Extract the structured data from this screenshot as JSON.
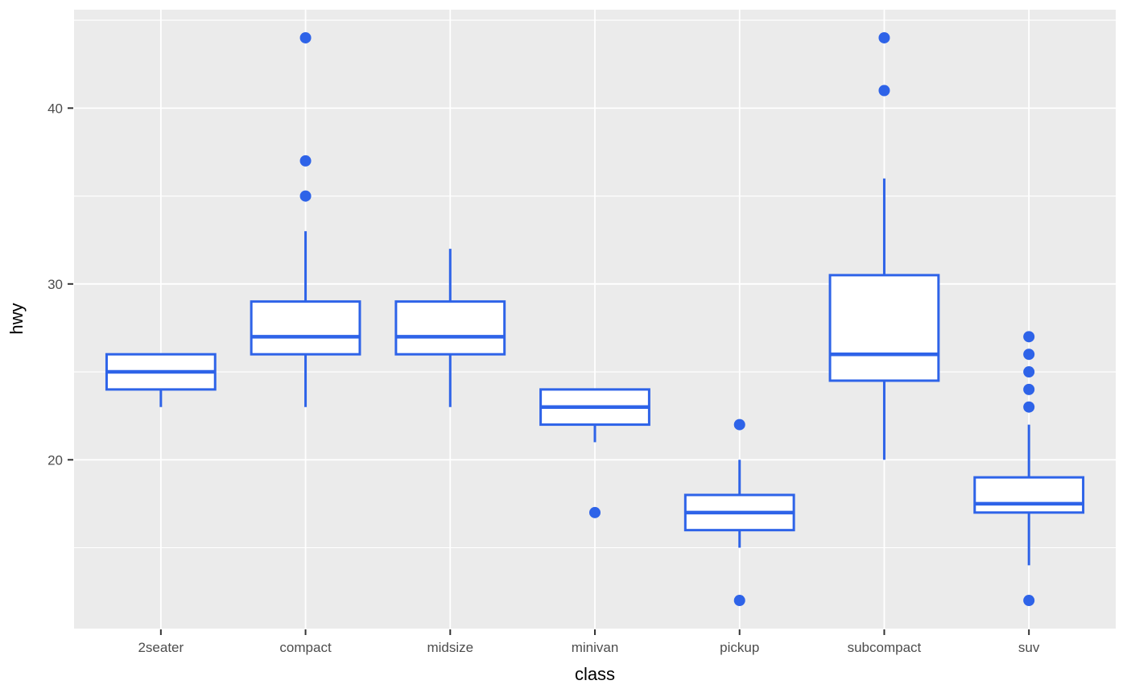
{
  "figure": {
    "background": "#FFFFFF"
  },
  "chart_data": {
    "type": "boxplot",
    "title": "",
    "xlabel": "class",
    "ylabel": "hwy",
    "categories": [
      "2seater",
      "compact",
      "midsize",
      "minivan",
      "pickup",
      "subcompact",
      "suv"
    ],
    "series": [
      {
        "category": "2seater",
        "whisker_low": 23,
        "q1": 24,
        "median": 25,
        "q3": 26,
        "whisker_high": 26,
        "outliers": []
      },
      {
        "category": "compact",
        "whisker_low": 23,
        "q1": 26,
        "median": 27,
        "q3": 29,
        "whisker_high": 33,
        "outliers": [
          35,
          37,
          44
        ]
      },
      {
        "category": "midsize",
        "whisker_low": 23,
        "q1": 26,
        "median": 27,
        "q3": 29,
        "whisker_high": 32,
        "outliers": []
      },
      {
        "category": "minivan",
        "whisker_low": 21,
        "q1": 22,
        "median": 23,
        "q3": 24,
        "whisker_high": 24,
        "outliers": [
          17
        ]
      },
      {
        "category": "pickup",
        "whisker_low": 15,
        "q1": 16,
        "median": 17,
        "q3": 18,
        "whisker_high": 20,
        "outliers": [
          12,
          22
        ]
      },
      {
        "category": "subcompact",
        "whisker_low": 20,
        "q1": 24.5,
        "median": 26,
        "q3": 30.5,
        "whisker_high": 36,
        "outliers": [
          41,
          44
        ]
      },
      {
        "category": "suv",
        "whisker_low": 14,
        "q1": 17,
        "median": 17.5,
        "q3": 19,
        "whisker_high": 22,
        "outliers": [
          23,
          24,
          25,
          26,
          27,
          12
        ]
      }
    ],
    "y_major_ticks": [
      20,
      30,
      40
    ],
    "y_minor_gridlines": [
      15,
      25,
      35,
      45
    ],
    "ylim": [
      10.4,
      45.6
    ],
    "grid": true,
    "legend": false,
    "colors": {
      "box_stroke": "#2E63E8",
      "box_fill": "#FFFFFF",
      "panel_background": "#EBEBEB",
      "grid_major": "#FFFFFF",
      "grid_minor": "#FFFFFF",
      "axis_text": "#4D4D4D",
      "axis_title": "#000000",
      "tick_mark": "#333333"
    }
  }
}
